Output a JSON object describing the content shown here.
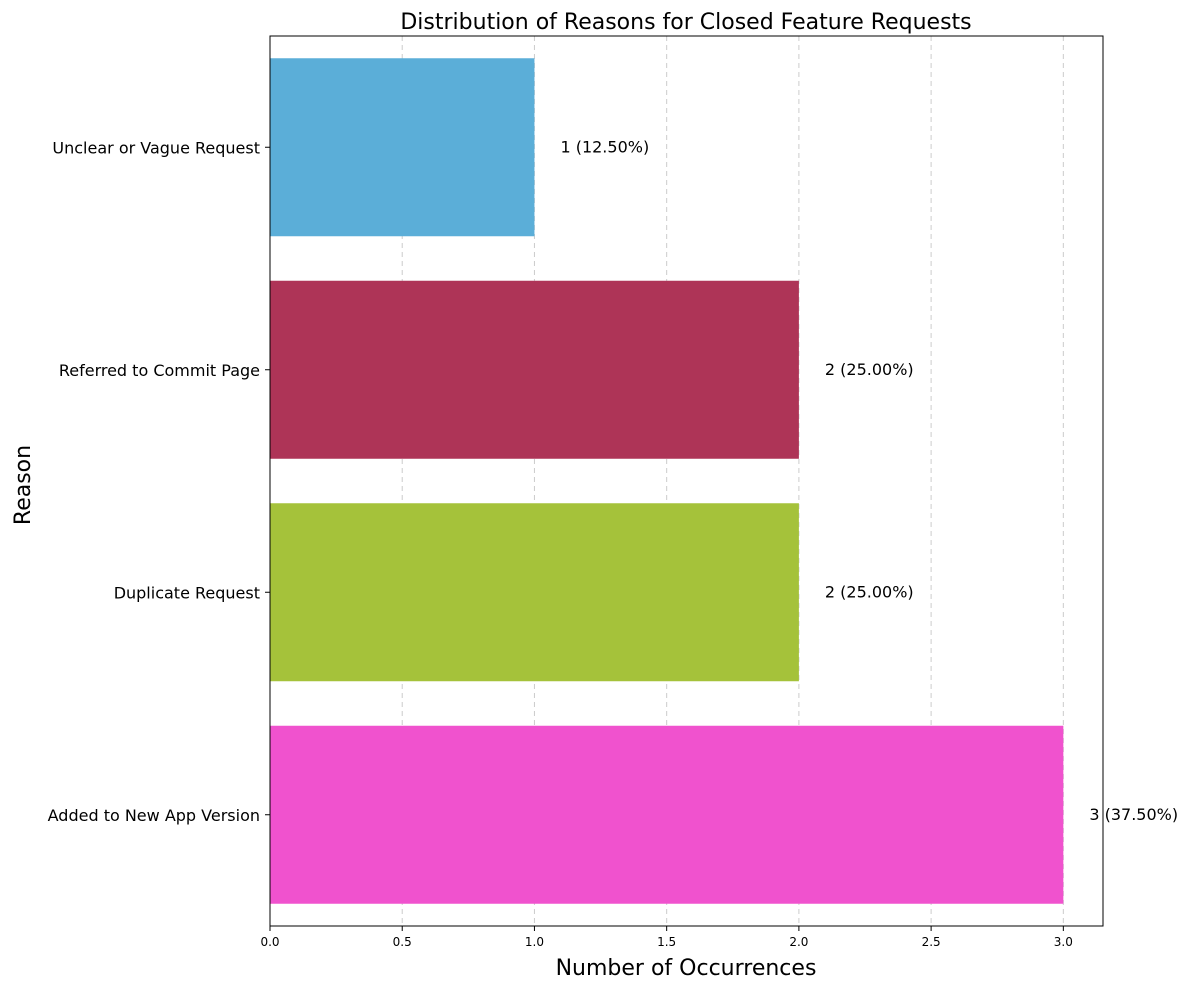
{
  "chart_data": {
    "type": "bar",
    "orientation": "horizontal",
    "title": "Distribution of Reasons for Closed Feature Requests",
    "xlabel": "Number of Occurrences",
    "ylabel": "Reason",
    "categories": [
      "Added to New App Version",
      "Duplicate Request",
      "Referred to Commit Page",
      "Unclear or Vague Request"
    ],
    "values": [
      3,
      2,
      2,
      1
    ],
    "data_labels": [
      "3 (37.50%)",
      "2 (25.00%)",
      "2 (25.00%)",
      "1 (12.50%)"
    ],
    "colors": [
      "#f052ce",
      "#a5c23a",
      "#ae3457",
      "#5baed8"
    ],
    "xlim": [
      0,
      3.15
    ],
    "xticks": [
      0,
      0.5,
      1,
      1.5,
      2,
      2.5,
      3
    ],
    "xtick_labels": [
      "0.0",
      "0.5",
      "1.0",
      "1.5",
      "2.0",
      "2.5",
      "3.0"
    ],
    "grid": {
      "x": true,
      "style": "dashed"
    },
    "legend": "none"
  }
}
